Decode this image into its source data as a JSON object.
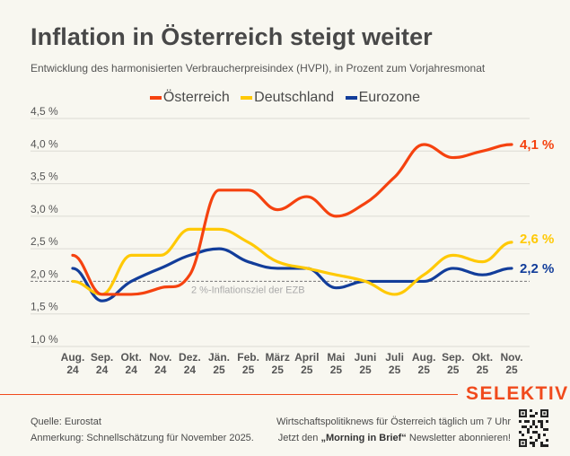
{
  "header": {
    "title": "Inflation in Österreich steigt weiter",
    "subtitle": "Entwicklung des harmonisierten Verbraucherpreisindex (HVPI), in Prozent zum Vorjahresmonat"
  },
  "chart_data": {
    "type": "line",
    "title": "Inflation in Österreich steigt weiter",
    "subtitle": "Entwicklung des harmonisierten Verbraucherpreisindex (HVPI), in Prozent zum Vorjahresmonat",
    "xlabel": "",
    "ylabel": "",
    "categories": [
      [
        "Aug.",
        "24"
      ],
      [
        "Sep.",
        "24"
      ],
      [
        "Okt.",
        "24"
      ],
      [
        "Nov.",
        "24"
      ],
      [
        "Dez.",
        "24"
      ],
      [
        "Jän.",
        "25"
      ],
      [
        "Feb.",
        "25"
      ],
      [
        "März",
        "25"
      ],
      [
        "April",
        "25"
      ],
      [
        "Mai",
        "25"
      ],
      [
        "Juni",
        "25"
      ],
      [
        "Juli",
        "25"
      ],
      [
        "Aug.",
        "25"
      ],
      [
        "Sep.",
        "25"
      ],
      [
        "Okt.",
        "25"
      ],
      [
        "Nov.",
        "25"
      ]
    ],
    "ylim": [
      1.0,
      4.5
    ],
    "yticks": [
      1.0,
      1.5,
      2.0,
      2.5,
      3.0,
      3.5,
      4.0,
      4.5
    ],
    "ytick_labels": [
      "1,0 %",
      "1,5 %",
      "2,0 %",
      "2,5 %",
      "3,0 %",
      "3,5 %",
      "4,0 %",
      "4,5 %"
    ],
    "grid": true,
    "legend_position": "top-center",
    "series": [
      {
        "name": "Österreich",
        "color": "#f5420f",
        "values": [
          2.4,
          1.8,
          1.8,
          1.9,
          2.1,
          3.4,
          3.4,
          3.1,
          3.3,
          3.0,
          3.2,
          3.6,
          4.1,
          3.9,
          4.0,
          4.1
        ],
        "end_label": "4,1 %"
      },
      {
        "name": "Deutschland",
        "color": "#ffc905",
        "values": [
          2.0,
          1.8,
          2.4,
          2.4,
          2.8,
          2.8,
          2.6,
          2.3,
          2.2,
          2.1,
          2.0,
          1.8,
          2.1,
          2.4,
          2.3,
          2.6
        ],
        "end_label": "2,6 %"
      },
      {
        "name": "Eurozone",
        "color": "#123d9a",
        "values": [
          2.2,
          1.7,
          2.0,
          2.2,
          2.4,
          2.5,
          2.3,
          2.2,
          2.2,
          1.9,
          2.0,
          2.0,
          2.0,
          2.2,
          2.1,
          2.2
        ],
        "end_label": "2,2 %"
      }
    ],
    "reference_line": {
      "value": 2.0,
      "label": "2 %-Inflationsziel der EZB",
      "style": "dashed"
    }
  },
  "footer": {
    "brand": "SELEKTIV",
    "brand_color": "#f04a1c",
    "source": "Quelle: Eurostat",
    "note": "Anmerkung: Schnellschätzung für November 2025.",
    "promo_line1": "Wirtschaftspolitiknews für Österreich täglich um 7 Uhr",
    "promo_line2_pre": "Jetzt den ",
    "promo_line2_bold": "„Morning in Brief“",
    "promo_line2_post": " Newsletter abonnieren!",
    "qr_icon": "qr-code-icon"
  }
}
